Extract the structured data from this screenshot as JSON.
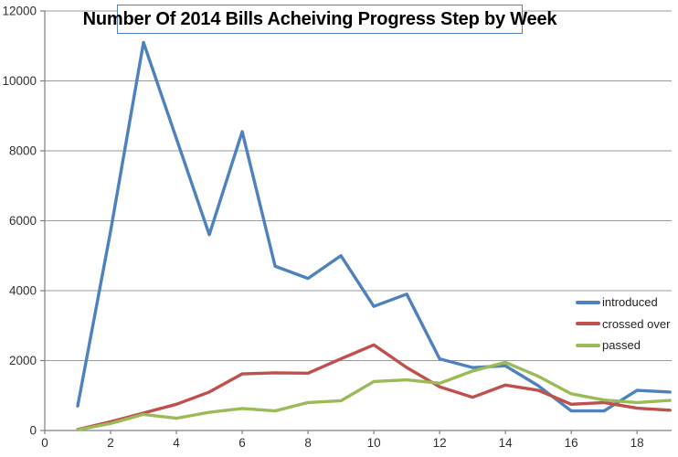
{
  "chart_data": {
    "type": "line",
    "title": "Number Of 2014 Bills Acheiving Progress Step by Week",
    "xlabel": "",
    "ylabel": "",
    "x": [
      1,
      2,
      3,
      4,
      5,
      6,
      7,
      8,
      9,
      10,
      11,
      12,
      13,
      14,
      15,
      16,
      17,
      18,
      19
    ],
    "series": [
      {
        "name": "introduced",
        "color": "#4F81BD",
        "values": [
          700,
          5700,
          11100,
          8350,
          5600,
          8550,
          4700,
          4350,
          5000,
          3550,
          3900,
          2050,
          1800,
          1850,
          1280,
          560,
          560,
          1150,
          1100
        ]
      },
      {
        "name": "crossed over",
        "color": "#C0504D",
        "values": [
          30,
          250,
          500,
          750,
          1100,
          1620,
          1650,
          1640,
          2050,
          2450,
          1800,
          1250,
          950,
          1300,
          1150,
          750,
          800,
          640,
          580
        ]
      },
      {
        "name": "passed",
        "color": "#9BBB59",
        "values": [
          20,
          200,
          460,
          350,
          520,
          630,
          560,
          800,
          850,
          1400,
          1450,
          1350,
          1700,
          1950,
          1550,
          1050,
          870,
          800,
          860
        ]
      }
    ],
    "xlim": [
      0,
      19.05
    ],
    "ylim": [
      0,
      12000
    ],
    "x_ticks": [
      0,
      2,
      4,
      6,
      8,
      10,
      12,
      14,
      16,
      18
    ],
    "y_ticks": [
      0,
      2000,
      4000,
      6000,
      8000,
      10000,
      12000
    ],
    "grid": "horizontal-only",
    "legend_position": "right-middle"
  },
  "colors": {
    "background": "#FFFFFF",
    "grid": "#9B9B9B",
    "axis": "#808080",
    "tick_label": "#303030",
    "title_border": "#4F81BD"
  }
}
